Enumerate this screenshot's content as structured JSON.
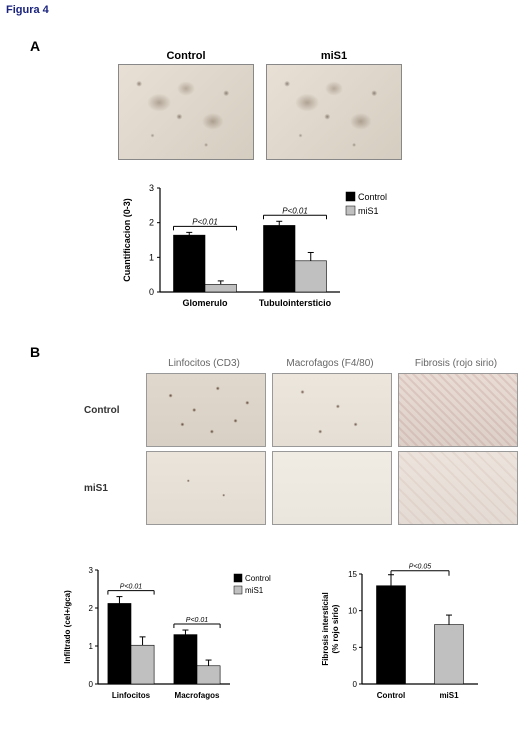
{
  "figure_title": "Figura 4",
  "panelA": {
    "letter": "A",
    "image_labels": {
      "control": "Control",
      "mis1": "miS1"
    },
    "chart": {
      "type": "bar",
      "ylabel": "Cuantificacion (0-3)",
      "ylim": [
        0,
        3
      ],
      "ytick_step": 1,
      "categories": [
        "Glomerulo",
        "Tubulointersticio"
      ],
      "series": [
        {
          "name": "Control",
          "color": "#000000",
          "values": [
            1.64,
            1.92
          ],
          "errors": [
            0.08,
            0.12
          ]
        },
        {
          "name": "miS1",
          "color": "#c0c0c0",
          "values": [
            0.22,
            0.9
          ],
          "errors": [
            0.1,
            0.24
          ]
        }
      ],
      "pvalues": [
        "P<0.01",
        "P<0.01"
      ],
      "bar_width": 0.35,
      "label_fontsize": 9,
      "background_color": "#ffffff",
      "axis_color": "#000000"
    }
  },
  "panelB": {
    "letter": "B",
    "col_labels": {
      "linfocitos": "Linfocitos (CD3)",
      "macrofagos": "Macrofagos (F4/80)",
      "fibrosis": "Fibrosis (rojo sirio)"
    },
    "row_labels": {
      "control": "Control",
      "mis1": "miS1"
    },
    "chart1": {
      "type": "bar",
      "ylabel": "Infiltrado (cel+/gca)",
      "ylim": [
        0,
        3
      ],
      "ytick_step": 1,
      "categories": [
        "Linfocitos",
        "Macrofagos"
      ],
      "series": [
        {
          "name": "Control",
          "color": "#000000",
          "values": [
            2.12,
            1.3
          ],
          "errors": [
            0.18,
            0.12
          ]
        },
        {
          "name": "miS1",
          "color": "#c0c0c0",
          "values": [
            1.02,
            0.48
          ],
          "errors": [
            0.22,
            0.15
          ]
        }
      ],
      "pvalues": [
        "P<0.01",
        "P<0.01"
      ],
      "bar_width": 0.35,
      "label_fontsize": 8,
      "background_color": "#ffffff",
      "axis_color": "#000000"
    },
    "chart2": {
      "type": "bar",
      "ylabel": "Fibrosis intersticial\n(% rojo sirio)",
      "ylim": [
        0,
        15
      ],
      "ytick_step": 5,
      "categories": [
        "Control",
        "miS1"
      ],
      "values": [
        13.4,
        8.1
      ],
      "errors": [
        1.5,
        1.3
      ],
      "colors": [
        "#000000",
        "#c0c0c0"
      ],
      "pvalue": "P<0.05",
      "bar_width": 0.5,
      "label_fontsize": 8,
      "background_color": "#ffffff",
      "axis_color": "#000000"
    }
  }
}
